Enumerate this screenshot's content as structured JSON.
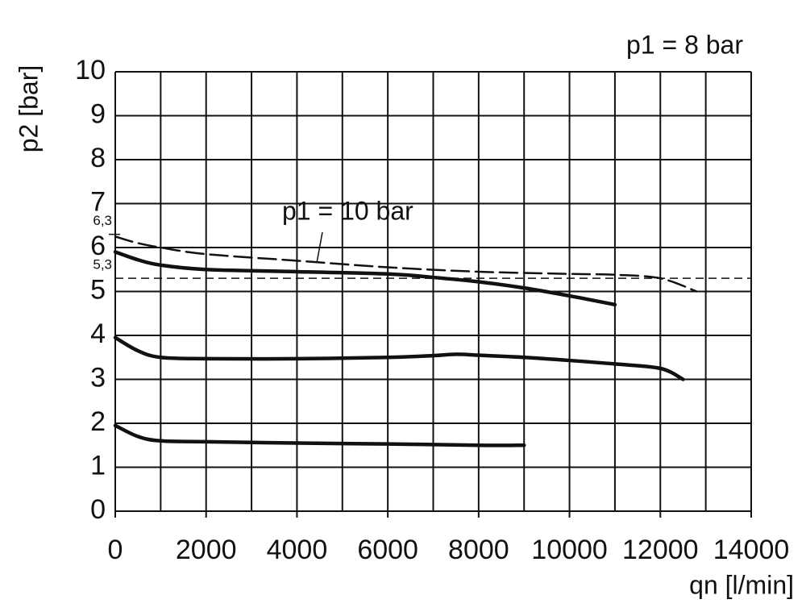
{
  "chart_data": {
    "type": "line",
    "x_label": "qn [l/min]",
    "y_label": "p2 [bar]",
    "xlim": [
      0,
      14000
    ],
    "ylim": [
      0,
      10
    ],
    "xticks": [
      0,
      2000,
      4000,
      6000,
      8000,
      10000,
      12000,
      14000
    ],
    "yticks": [
      0,
      1,
      2,
      3,
      4,
      5,
      6,
      7,
      8,
      9,
      10
    ],
    "grid_step_x": 1000,
    "grid": true,
    "annotations": [
      "p1 = 8 bar",
      "p1 = 10 bar"
    ],
    "reference_lines": [
      {
        "value": 6.3,
        "label": "6,3"
      },
      {
        "value": 5.3,
        "label": "5,3",
        "dashed": true
      }
    ],
    "series": [
      {
        "color": "#111111",
        "dashed": false,
        "x": [
          0,
          500,
          1000,
          2000,
          4000,
          6000,
          7000,
          8000,
          9000,
          10000,
          11000
        ],
        "values": [
          5.9,
          5.72,
          5.6,
          5.5,
          5.45,
          5.4,
          5.32,
          5.22,
          5.08,
          4.9,
          4.7
        ]
      },
      {
        "color": "#111111",
        "dashed": false,
        "x": [
          0,
          500,
          1000,
          2000,
          4000,
          6000,
          7000,
          7500,
          8000,
          9000,
          10000,
          11000,
          12000,
          12500
        ],
        "values": [
          3.95,
          3.65,
          3.5,
          3.47,
          3.47,
          3.5,
          3.54,
          3.57,
          3.55,
          3.5,
          3.43,
          3.35,
          3.25,
          3.0
        ]
      },
      {
        "color": "#111111",
        "dashed": false,
        "x": [
          0,
          500,
          1000,
          2000,
          4000,
          6000,
          8000,
          9000
        ],
        "values": [
          1.95,
          1.7,
          1.6,
          1.58,
          1.55,
          1.53,
          1.5,
          1.5
        ]
      },
      {
        "color": "#111111",
        "dashed": true,
        "x": [
          0,
          500,
          1000,
          2000,
          4000,
          6000,
          8000,
          10000,
          11000,
          12000,
          12800
        ],
        "values": [
          6.25,
          6.1,
          6.0,
          5.85,
          5.7,
          5.55,
          5.45,
          5.4,
          5.38,
          5.3,
          5.0
        ]
      }
    ]
  }
}
